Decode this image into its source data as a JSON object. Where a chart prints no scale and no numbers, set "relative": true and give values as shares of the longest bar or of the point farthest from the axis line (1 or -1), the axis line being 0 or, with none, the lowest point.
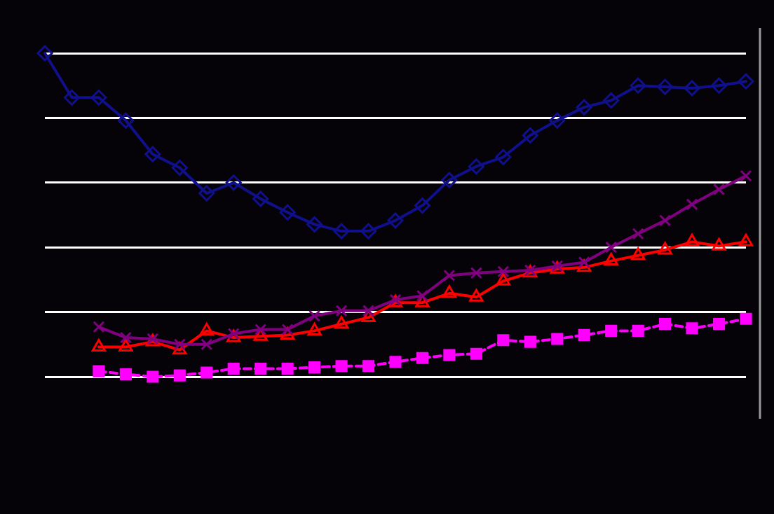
{
  "chart_data": {
    "type": "line",
    "relative": true,
    "grid": "y",
    "legend": false,
    "categories": [
      null,
      null,
      null,
      null,
      null,
      null,
      null,
      null,
      null,
      null,
      null,
      null,
      null,
      null,
      null,
      null,
      null,
      null,
      null,
      null,
      null,
      null,
      null,
      null,
      null,
      null,
      null
    ],
    "series": [
      {
        "color": "#10108c",
        "marker": "diamond",
        "line_style": "solid",
        "values": [
          1,
          0.863,
          0.863,
          0.792,
          0.688,
          0.646,
          0.567,
          0.6,
          0.55,
          0.508,
          0.471,
          0.45,
          0.45,
          0.483,
          0.529,
          0.608,
          0.65,
          0.679,
          0.746,
          0.792,
          0.833,
          0.854,
          0.9,
          0.896,
          0.892,
          0.9,
          0.913
        ]
      },
      {
        "color": "#800080",
        "marker": "cross",
        "line_style": "solid",
        "values": [
          null,
          null,
          0.154,
          0.121,
          0.117,
          0.1,
          0.1,
          0.133,
          0.146,
          0.146,
          0.188,
          0.204,
          0.204,
          0.238,
          0.25,
          0.313,
          0.321,
          0.325,
          0.329,
          0.342,
          0.354,
          0.4,
          0.442,
          0.483,
          0.533,
          0.579,
          0.621
        ]
      },
      {
        "color": "#ff0000",
        "marker": "triangle",
        "line_style": "solid",
        "values": [
          null,
          null,
          0.092,
          0.092,
          0.108,
          0.083,
          0.142,
          0.121,
          0.125,
          0.129,
          0.142,
          0.163,
          0.183,
          0.229,
          0.229,
          0.258,
          0.246,
          0.296,
          0.321,
          0.333,
          0.338,
          0.358,
          0.375,
          0.392,
          0.417,
          0.404,
          0.417
        ]
      },
      {
        "color": "#ff00ff",
        "marker": "square",
        "line_style": "dashed",
        "values": [
          null,
          null,
          0.017,
          0.008,
          0,
          0.004,
          0.013,
          0.025,
          0.025,
          0.025,
          0.029,
          0.033,
          0.033,
          0.046,
          0.058,
          0.067,
          0.071,
          0.113,
          0.108,
          0.117,
          0.129,
          0.142,
          0.142,
          0.163,
          0.15,
          0.163,
          0.179
        ]
      }
    ]
  }
}
